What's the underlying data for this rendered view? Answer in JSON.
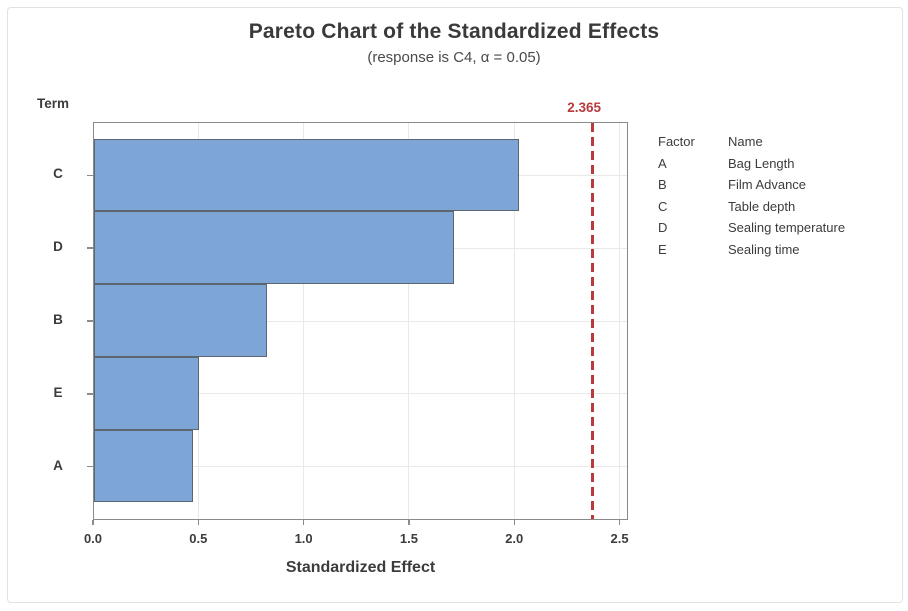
{
  "chart_data": {
    "type": "bar",
    "orientation": "horizontal",
    "title": "Pareto Chart of the Standardized Effects",
    "subtitle": "(response is C4, α = 0.05)",
    "y_axis_title": "Term",
    "xlabel": "Standardized Effect",
    "categories": [
      "C",
      "D",
      "B",
      "E",
      "A"
    ],
    "values": [
      2.02,
      1.71,
      0.82,
      0.5,
      0.47
    ],
    "x_ticks": [
      0.0,
      0.5,
      1.0,
      1.5,
      2.0,
      2.5
    ],
    "x_tick_labels": [
      "0.0",
      "0.5",
      "1.0",
      "1.5",
      "2.0",
      "2.5"
    ],
    "xlim": [
      0,
      2.54
    ],
    "grid": "vertical gridlines at 0.5 intervals, horizontal gridlines at category centers",
    "reference_line": {
      "value": 2.365,
      "label": "2.365",
      "style": "dashed"
    },
    "legend": {
      "position": "right",
      "headers": [
        "Factor",
        "Name"
      ],
      "rows": [
        [
          "A",
          "Bag Length"
        ],
        [
          "B",
          "Film Advance"
        ],
        [
          "C",
          "Table depth"
        ],
        [
          "D",
          "Sealing temperature"
        ],
        [
          "E",
          "Sealing time"
        ]
      ]
    },
    "colors": {
      "bar_fill": "#7da5d5",
      "bar_border": "#5b6671",
      "frame": "#8a8a8a",
      "gridline": "#e9e9e9",
      "reference": "#b93a3c",
      "text": "#3c3c3c"
    }
  }
}
